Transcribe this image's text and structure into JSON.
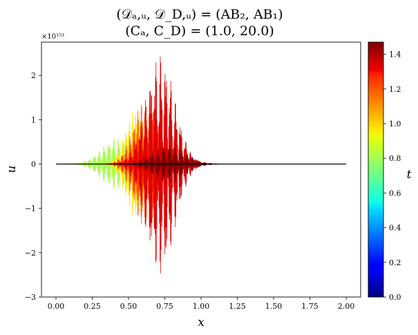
{
  "chart_data": {
    "type": "line",
    "title_line1": "(𝒟ₐ,ᵤ, 𝒟_D,ᵤ) = (AB₂, AB₁)",
    "title_line2": "(Cₐ, C_D) = (1.0, 20.0)",
    "xlabel": "x",
    "ylabel": "u",
    "colorbar_label": "t",
    "y_offset_text": "×10¹⁵³",
    "xlim": [
      -0.1,
      2.1
    ],
    "ylim": [
      -3,
      2.75
    ],
    "x_ticks": [
      0.0,
      0.25,
      0.5,
      0.75,
      1.0,
      1.25,
      1.5,
      1.75,
      2.0
    ],
    "x_tick_labels": [
      "0.00",
      "0.25",
      "0.50",
      "0.75",
      "1.00",
      "1.25",
      "1.50",
      "1.75",
      "2.00"
    ],
    "y_ticks": [
      -3,
      -2,
      -1,
      0,
      1,
      2
    ],
    "y_tick_labels": [
      "−3",
      "−2",
      "−1",
      "0",
      "1",
      "2"
    ],
    "colorbar": {
      "colormap": "jet",
      "range": [
        0.0,
        1.47
      ],
      "ticks": [
        0.0,
        0.2,
        0.4,
        0.6,
        0.8,
        1.0,
        1.2,
        1.4
      ],
      "tick_labels": [
        "0.0",
        "0.2",
        "0.4",
        "0.6",
        "0.8",
        "1.0",
        "1.2",
        "1.4"
      ]
    },
    "x_domain": [
      0.0,
      2.0
    ],
    "series": [
      {
        "t": 0.86,
        "color": "#a8ff4f",
        "center": 0.42,
        "width": 0.15,
        "amplitude": 0.6,
        "x_range": [
          0.08,
          0.95
        ]
      },
      {
        "t": 1.0,
        "color": "#ffe600",
        "center": 0.55,
        "width": 0.1,
        "amplitude": 1.25,
        "x_range": [
          0.35,
          0.95
        ]
      },
      {
        "t": 1.2,
        "color": "#ff4a00",
        "center": 0.62,
        "width": 0.12,
        "amplitude": 1.5,
        "x_range": [
          0.35,
          1.05
        ]
      },
      {
        "t": 1.35,
        "color": "#e00000",
        "center": 0.72,
        "width": 0.14,
        "amplitude": 2.5,
        "x_range": [
          0.3,
          1.2
        ]
      },
      {
        "t": 1.47,
        "color": "#800000",
        "center": 0.78,
        "width": 0.16,
        "amplitude": 0.45,
        "x_range": [
          0.2,
          1.25
        ]
      }
    ]
  }
}
